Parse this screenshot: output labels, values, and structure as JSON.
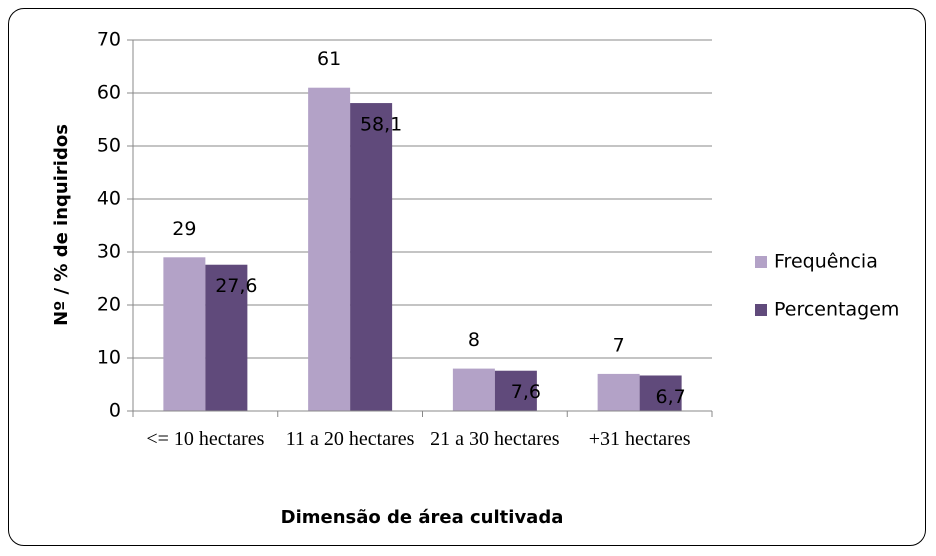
{
  "chart_data": {
    "type": "bar",
    "xlabel": "Dimensão de área cultivada",
    "ylabel": "Nº / % de inquiridos",
    "categories": [
      "<= 10 hectares",
      "11 a 20 hectares",
      "21 a 30 hectares",
      "+31 hectares"
    ],
    "series": [
      {
        "name": "Frequência",
        "color": "#b3a2c7",
        "values": [
          29,
          61,
          8,
          7
        ]
      },
      {
        "name": "Percentagem",
        "color": "#604a7b",
        "values": [
          27.6,
          58.1,
          7.6,
          6.7
        ],
        "value_labels": [
          "27,6",
          "58,1",
          "7,6",
          "6,7"
        ]
      }
    ],
    "ylim": [
      0,
      70
    ],
    "yticks": [
      0,
      10,
      20,
      30,
      40,
      50,
      60,
      70
    ],
    "grid": true,
    "legend": "right"
  }
}
